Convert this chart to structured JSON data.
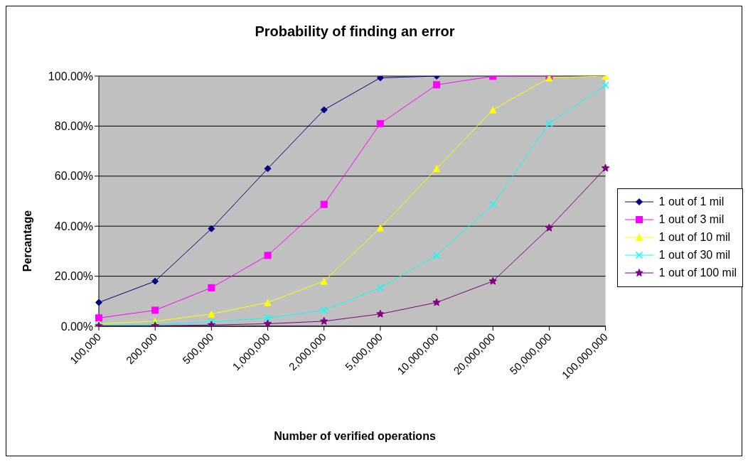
{
  "chart_data": {
    "type": "line",
    "title": "Probability of finding an error",
    "xlabel": "Number of verified operations",
    "ylabel": "Percantage",
    "categories": [
      "100,000",
      "200,000",
      "500,000",
      "1,000,000",
      "2,000,000",
      "5,000,000",
      "10,000,000",
      "20,000,000",
      "50,000,000",
      "100,000,000"
    ],
    "series": [
      {
        "name": "1 out of 1 mil",
        "color": "#000080",
        "marker": "diamond",
        "values": [
          9.5,
          18,
          39,
          63,
          86.5,
          99.3,
          100,
          null,
          null,
          null
        ]
      },
      {
        "name": "1 out of 3 mil",
        "color": "#ff00ff",
        "marker": "square",
        "values": [
          3.3,
          6.4,
          15.4,
          28.3,
          48.7,
          81,
          96.5,
          99.9,
          100,
          null
        ]
      },
      {
        "name": "1 out of 10 mil",
        "color": "#ffff00",
        "marker": "triangle",
        "values": [
          1,
          2,
          4.9,
          9.5,
          18,
          39.3,
          63,
          86.5,
          99.3,
          100
        ]
      },
      {
        "name": "1 out of 30 mil",
        "color": "#00ffff",
        "marker": "cross",
        "values": [
          0.3,
          0.7,
          1.7,
          3.3,
          6.4,
          15.4,
          28.3,
          48.7,
          81,
          96.4
        ]
      },
      {
        "name": "1 out of 100 mil",
        "color": "#800080",
        "marker": "star",
        "values": [
          0.1,
          0.2,
          0.5,
          1,
          2,
          4.9,
          9.5,
          18,
          39.3,
          63.2
        ]
      }
    ],
    "ylim": [
      0,
      100
    ],
    "yticks": [
      {
        "value": 0,
        "label": "0.00%"
      },
      {
        "value": 20,
        "label": "20.00%"
      },
      {
        "value": 40,
        "label": "40.00%"
      },
      {
        "value": 60,
        "label": "60.00%"
      },
      {
        "value": 80,
        "label": "80.00%"
      },
      {
        "value": 100,
        "label": "100.00%"
      }
    ],
    "grid": "y",
    "legend": "right",
    "line_style": "solid"
  }
}
